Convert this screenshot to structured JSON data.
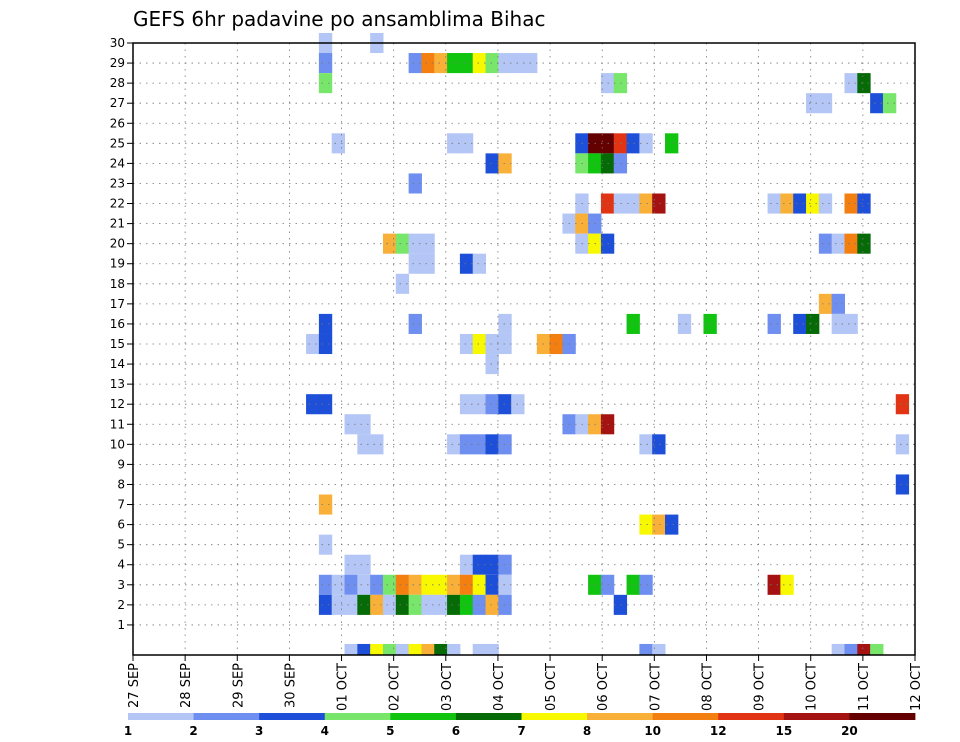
{
  "chart_data": {
    "type": "heatmap",
    "title": "GEFS 6hr padavine po ansamblima Bihac",
    "y_ticks": [
      "1",
      "2",
      "3",
      "4",
      "5",
      "6",
      "7",
      "8",
      "9",
      "10",
      "11",
      "12",
      "13",
      "14",
      "15",
      "16",
      "17",
      "18",
      "19",
      "20",
      "21",
      "22",
      "23",
      "24",
      "25",
      "26",
      "27",
      "28",
      "29",
      "30"
    ],
    "x_ticks": [
      "27 SEP",
      "28 SEP",
      "29 SEP",
      "30 SEP",
      "01 OCT",
      "02 OCT",
      "03 OCT",
      "04 OCT",
      "05 OCT",
      "06 OCT",
      "07 OCT",
      "08 OCT",
      "09 OCT",
      "10 OCT",
      "11 OCT",
      "12 OCT"
    ],
    "grid": true,
    "colorbar": {
      "labels": [
        "1",
        "2",
        "3",
        "4",
        "5",
        "6",
        "7",
        "8",
        "10",
        "12",
        "15",
        "20"
      ],
      "colors": [
        "#b4c6f5",
        "#6e8ff0",
        "#1d4fd8",
        "#78e66a",
        "#10c410",
        "#066a06",
        "#f8f800",
        "#f8b038",
        "#f37f10",
        "#e03414",
        "#a41212",
        "#640000"
      ]
    },
    "cells": [
      [
        30,
        15,
        1
      ],
      [
        30,
        19,
        1
      ],
      [
        29,
        15,
        2
      ],
      [
        29,
        22,
        2
      ],
      [
        29,
        23,
        9
      ],
      [
        29,
        24,
        8
      ],
      [
        29,
        25,
        5
      ],
      [
        29,
        26,
        5
      ],
      [
        29,
        27,
        7
      ],
      [
        29,
        28,
        4
      ],
      [
        29,
        29,
        1
      ],
      [
        29,
        30,
        1
      ],
      [
        29,
        31,
        1
      ],
      [
        28,
        15,
        4
      ],
      [
        28,
        37,
        1
      ],
      [
        28,
        38,
        4
      ],
      [
        28,
        56,
        1
      ],
      [
        28,
        57,
        6
      ],
      [
        27,
        53,
        1
      ],
      [
        27,
        54,
        1
      ],
      [
        27,
        58,
        3
      ],
      [
        27,
        59,
        4
      ],
      [
        25,
        16,
        1
      ],
      [
        25,
        25,
        1
      ],
      [
        25,
        26,
        1
      ],
      [
        25,
        35,
        3
      ],
      [
        25,
        36,
        12
      ],
      [
        25,
        37,
        12
      ],
      [
        25,
        38,
        10
      ],
      [
        25,
        39,
        3
      ],
      [
        25,
        40,
        1
      ],
      [
        25,
        42,
        5
      ],
      [
        24,
        28,
        3
      ],
      [
        24,
        29,
        8
      ],
      [
        24,
        35,
        4
      ],
      [
        24,
        36,
        5
      ],
      [
        24,
        37,
        6
      ],
      [
        24,
        38,
        2
      ],
      [
        23,
        22,
        2
      ],
      [
        22,
        35,
        1
      ],
      [
        22,
        37,
        10
      ],
      [
        22,
        38,
        1
      ],
      [
        22,
        39,
        1
      ],
      [
        22,
        40,
        8
      ],
      [
        22,
        41,
        11
      ],
      [
        22,
        50,
        1
      ],
      [
        22,
        51,
        8
      ],
      [
        22,
        52,
        3
      ],
      [
        22,
        53,
        7
      ],
      [
        22,
        54,
        1
      ],
      [
        22,
        56,
        9
      ],
      [
        22,
        57,
        3
      ],
      [
        21,
        34,
        1
      ],
      [
        21,
        35,
        8
      ],
      [
        21,
        36,
        2
      ],
      [
        20,
        20,
        8
      ],
      [
        20,
        21,
        4
      ],
      [
        20,
        22,
        1
      ],
      [
        20,
        23,
        1
      ],
      [
        20,
        35,
        1
      ],
      [
        20,
        36,
        7
      ],
      [
        20,
        37,
        3
      ],
      [
        20,
        54,
        2
      ],
      [
        20,
        55,
        1
      ],
      [
        20,
        56,
        9
      ],
      [
        20,
        57,
        6
      ],
      [
        19,
        22,
        1
      ],
      [
        19,
        23,
        1
      ],
      [
        19,
        26,
        3
      ],
      [
        19,
        27,
        1
      ],
      [
        18,
        21,
        1
      ],
      [
        17,
        54,
        8
      ],
      [
        17,
        55,
        2
      ],
      [
        16,
        15,
        3
      ],
      [
        16,
        22,
        2
      ],
      [
        16,
        29,
        1
      ],
      [
        16,
        39,
        5
      ],
      [
        16,
        43,
        1
      ],
      [
        16,
        45,
        5
      ],
      [
        16,
        50,
        2
      ],
      [
        16,
        52,
        3
      ],
      [
        16,
        53,
        6
      ],
      [
        16,
        55,
        1
      ],
      [
        16,
        56,
        1
      ],
      [
        15,
        14,
        1
      ],
      [
        15,
        15,
        3
      ],
      [
        15,
        26,
        1
      ],
      [
        15,
        27,
        7
      ],
      [
        15,
        28,
        1
      ],
      [
        15,
        29,
        1
      ],
      [
        15,
        32,
        8
      ],
      [
        15,
        33,
        9
      ],
      [
        15,
        34,
        2
      ],
      [
        14,
        28,
        1
      ],
      [
        12,
        14,
        3
      ],
      [
        12,
        15,
        3
      ],
      [
        12,
        26,
        1
      ],
      [
        12,
        27,
        1
      ],
      [
        12,
        28,
        2
      ],
      [
        12,
        29,
        3
      ],
      [
        12,
        30,
        1
      ],
      [
        12,
        60,
        10
      ],
      [
        11,
        17,
        1
      ],
      [
        11,
        18,
        1
      ],
      [
        11,
        34,
        2
      ],
      [
        11,
        35,
        1
      ],
      [
        11,
        36,
        8
      ],
      [
        11,
        37,
        11
      ],
      [
        10,
        18,
        1
      ],
      [
        10,
        19,
        1
      ],
      [
        10,
        25,
        1
      ],
      [
        10,
        26,
        2
      ],
      [
        10,
        27,
        2
      ],
      [
        10,
        28,
        3
      ],
      [
        10,
        29,
        2
      ],
      [
        10,
        40,
        1
      ],
      [
        10,
        41,
        3
      ],
      [
        10,
        60,
        1
      ],
      [
        8,
        60,
        3
      ],
      [
        7,
        15,
        8
      ],
      [
        6,
        40,
        7
      ],
      [
        6,
        41,
        8
      ],
      [
        6,
        42,
        3
      ],
      [
        5,
        15,
        1
      ],
      [
        4,
        17,
        1
      ],
      [
        4,
        18,
        1
      ],
      [
        4,
        26,
        1
      ],
      [
        4,
        27,
        3
      ],
      [
        4,
        28,
        3
      ],
      [
        4,
        29,
        2
      ],
      [
        3,
        15,
        2
      ],
      [
        3,
        16,
        1
      ],
      [
        3,
        17,
        2
      ],
      [
        3,
        18,
        1
      ],
      [
        3,
        19,
        2
      ],
      [
        3,
        20,
        4
      ],
      [
        3,
        21,
        9
      ],
      [
        3,
        22,
        8
      ],
      [
        3,
        23,
        7
      ],
      [
        3,
        24,
        7
      ],
      [
        3,
        25,
        8
      ],
      [
        3,
        26,
        9
      ],
      [
        3,
        27,
        7
      ],
      [
        3,
        28,
        3
      ],
      [
        3,
        29,
        1
      ],
      [
        3,
        36,
        5
      ],
      [
        3,
        37,
        2
      ],
      [
        3,
        39,
        5
      ],
      [
        3,
        40,
        2
      ],
      [
        3,
        50,
        11
      ],
      [
        3,
        51,
        7
      ],
      [
        2,
        15,
        3
      ],
      [
        2,
        16,
        1
      ],
      [
        2,
        17,
        1
      ],
      [
        2,
        18,
        6
      ],
      [
        2,
        19,
        8
      ],
      [
        2,
        20,
        1
      ],
      [
        2,
        21,
        6
      ],
      [
        2,
        22,
        4
      ],
      [
        2,
        23,
        1
      ],
      [
        2,
        24,
        1
      ],
      [
        2,
        25,
        6
      ],
      [
        2,
        26,
        5
      ],
      [
        2,
        27,
        2
      ],
      [
        2,
        28,
        8
      ],
      [
        2,
        29,
        2
      ],
      [
        2,
        38,
        3
      ],
      [
        0,
        17,
        1
      ],
      [
        0,
        18,
        3
      ],
      [
        0,
        19,
        7
      ],
      [
        0,
        20,
        4
      ],
      [
        0,
        21,
        1
      ],
      [
        0,
        22,
        7
      ],
      [
        0,
        23,
        8
      ],
      [
        0,
        24,
        6
      ],
      [
        0,
        25,
        1
      ],
      [
        0,
        27,
        1
      ],
      [
        0,
        28,
        1
      ],
      [
        0,
        40,
        2
      ],
      [
        0,
        41,
        1
      ],
      [
        0,
        55,
        1
      ],
      [
        0,
        56,
        2
      ],
      [
        0,
        57,
        11
      ],
      [
        0,
        58,
        4
      ]
    ]
  }
}
